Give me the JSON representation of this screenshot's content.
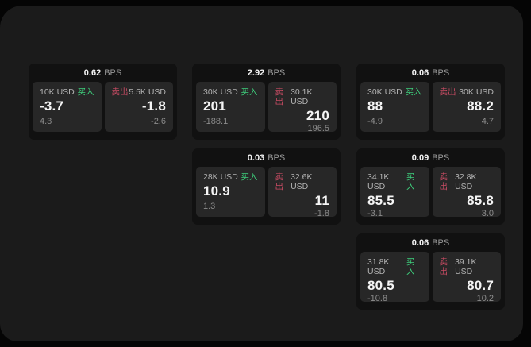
{
  "labels": {
    "bps_unit": "BPS",
    "buy": "买入",
    "sell": "卖出"
  },
  "colors": {
    "page_bg": "#050505",
    "panel_bg": "#1b1b1b",
    "card_bg": "#111111",
    "tile_bg": "#272727",
    "text_primary": "#f5f5f5",
    "text_secondary": "#b3b3b3",
    "text_muted": "#8c8c8c",
    "buy_green": "#3ecf7c",
    "sell_red": "#c74b63"
  },
  "cards": [
    {
      "bps": "0.62",
      "buy": {
        "size": "10K USD",
        "price": "-3.7",
        "delta": "4.3"
      },
      "sell": {
        "size": "5.5K USD",
        "price": "-1.8",
        "delta": "-2.6"
      }
    },
    {
      "bps": "2.92",
      "buy": {
        "size": "30K USD",
        "price": "201",
        "delta": "-188.1"
      },
      "sell": {
        "size": "30.1K USD",
        "price": "210",
        "delta": "196.5"
      }
    },
    {
      "bps": "0.06",
      "buy": {
        "size": "30K USD",
        "price": "88",
        "delta": "-4.9"
      },
      "sell": {
        "size": "30K USD",
        "price": "88.2",
        "delta": "4.7"
      }
    },
    {
      "bps": "0.03",
      "buy": {
        "size": "28K USD",
        "price": "10.9",
        "delta": "1.3"
      },
      "sell": {
        "size": "32.6K USD",
        "price": "11",
        "delta": "-1.8"
      }
    },
    {
      "bps": "0.09",
      "buy": {
        "size": "34.1K USD",
        "price": "85.5",
        "delta": "-3.1"
      },
      "sell": {
        "size": "32.8K USD",
        "price": "85.8",
        "delta": "3.0"
      }
    },
    {
      "bps": "0.06",
      "buy": {
        "size": "31.8K USD",
        "price": "80.5",
        "delta": "-10.8"
      },
      "sell": {
        "size": "39.1K USD",
        "price": "80.7",
        "delta": "10.2"
      }
    }
  ]
}
